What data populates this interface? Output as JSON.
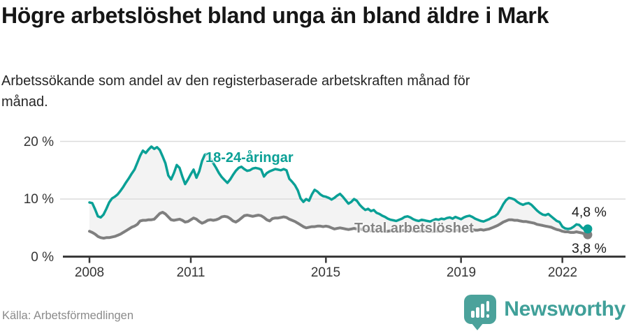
{
  "header": {
    "title": "Högre arbetslöshet bland unga än bland äldre i Mark",
    "subtitle": "Arbetssökande som andel av den registerbaserade arbetskraften månad för månad."
  },
  "footer": {
    "source": "Källa: Arbetsförmedlingen",
    "brand_name": "Newsworthy",
    "brand_logo_icon": "speech-bubble-with-bar-chart"
  },
  "colors": {
    "young_line": "#0aa096",
    "total_line": "#7f7f7f",
    "grid": "#dcdcdc",
    "axis": "#3a3a3a",
    "area_fill": "#f3f3f3",
    "logo_teal": "#4ba29b",
    "title_text": "#161616",
    "source_text": "#8b8b8b"
  },
  "chart_data": {
    "type": "line",
    "title": "Högre arbetslöshet bland unga än bland äldre i Mark",
    "subtitle": "Arbetssökande som andel av den registerbaserade arbetskraften månad för månad.",
    "unit": "%",
    "grid": "horizontal",
    "x_start_year": 2008,
    "points_per_year": 12,
    "x_ticks": [
      2008,
      2011,
      2015,
      2019,
      2022
    ],
    "x_tick_labels": [
      "2008",
      "2011",
      "2015",
      "2019",
      "2022"
    ],
    "y_ticks": [
      0,
      10,
      20
    ],
    "y_tick_labels": [
      "0 %",
      "10 %",
      "20 %"
    ],
    "ylim": [
      0,
      21
    ],
    "area_fill_between_series": true,
    "legend_position": "inline-labels",
    "series": [
      {
        "name": "18-24-åringar",
        "color": "#0aa096",
        "end_label": "4,8 %",
        "end_value": 4.8,
        "values": [
          9.4,
          9.3,
          8.2,
          7.0,
          6.8,
          7.3,
          8.3,
          9.4,
          10.1,
          10.4,
          10.8,
          11.4,
          12.1,
          12.9,
          13.6,
          14.4,
          15.1,
          16.3,
          17.5,
          18.4,
          18.0,
          18.6,
          19.1,
          18.7,
          19.0,
          18.5,
          17.4,
          16.2,
          14.1,
          13.4,
          14.5,
          15.9,
          15.4,
          13.9,
          12.6,
          13.4,
          14.3,
          15.1,
          13.7,
          14.8,
          16.6,
          17.7,
          17.9,
          17.0,
          16.2,
          15.4,
          14.5,
          13.8,
          13.3,
          12.8,
          13.4,
          14.2,
          14.9,
          15.4,
          15.6,
          15.2,
          14.9,
          15.0,
          15.3,
          15.4,
          15.3,
          15.1,
          13.9,
          14.5,
          14.8,
          15.0,
          15.2,
          15.1,
          15.0,
          15.2,
          15.0,
          13.5,
          13.0,
          12.4,
          11.5,
          10.1,
          9.5,
          10.0,
          9.7,
          10.8,
          11.6,
          11.3,
          10.8,
          10.5,
          10.4,
          10.2,
          9.9,
          10.2,
          10.6,
          10.9,
          10.4,
          9.8,
          9.2,
          9.5,
          10.0,
          9.7,
          9.0,
          8.5,
          8.1,
          8.3,
          7.9,
          8.1,
          7.6,
          7.4,
          7.1,
          6.9,
          6.6,
          6.4,
          6.3,
          6.2,
          6.4,
          6.6,
          6.9,
          7.0,
          6.8,
          6.5,
          6.3,
          6.2,
          6.4,
          6.3,
          6.2,
          6.1,
          6.3,
          6.5,
          6.4,
          6.6,
          6.5,
          6.7,
          6.8,
          6.6,
          6.9,
          6.7,
          6.5,
          6.8,
          7.0,
          7.1,
          6.9,
          6.6,
          6.4,
          6.2,
          6.1,
          6.3,
          6.5,
          6.8,
          7.0,
          7.4,
          8.2,
          9.1,
          9.8,
          10.2,
          10.1,
          9.9,
          9.5,
          9.2,
          9.0,
          9.2,
          9.3,
          9.0,
          8.5,
          8.0,
          7.6,
          7.3,
          7.2,
          7.4,
          7.0,
          6.6,
          6.2,
          6.0,
          5.2,
          4.9,
          4.8,
          4.9,
          5.2,
          5.6,
          5.5,
          5.0,
          4.7,
          4.8
        ]
      },
      {
        "name": "Total arbetslöshet",
        "color": "#7f7f7f",
        "end_label": "3,8 %",
        "end_value": 3.8,
        "values": [
          4.4,
          4.2,
          3.9,
          3.5,
          3.3,
          3.2,
          3.3,
          3.3,
          3.4,
          3.5,
          3.7,
          3.9,
          4.2,
          4.5,
          4.8,
          5.1,
          5.3,
          5.6,
          6.2,
          6.3,
          6.3,
          6.4,
          6.4,
          6.5,
          7.0,
          7.5,
          7.7,
          7.4,
          6.9,
          6.4,
          6.3,
          6.4,
          6.5,
          6.3,
          6.0,
          6.1,
          6.4,
          6.7,
          6.5,
          6.1,
          5.8,
          6.0,
          6.3,
          6.4,
          6.3,
          6.4,
          6.6,
          6.9,
          7.0,
          6.9,
          6.6,
          6.2,
          6.0,
          6.3,
          6.7,
          7.1,
          7.2,
          7.1,
          7.0,
          7.1,
          7.2,
          7.1,
          6.8,
          6.4,
          6.2,
          6.6,
          6.7,
          6.7,
          6.8,
          6.9,
          6.8,
          6.5,
          6.3,
          6.1,
          5.8,
          5.5,
          5.2,
          5.0,
          5.1,
          5.2,
          5.2,
          5.3,
          5.3,
          5.2,
          5.3,
          5.2,
          5.0,
          4.8,
          4.9,
          5.0,
          4.9,
          4.8,
          4.7,
          4.8,
          4.9,
          4.8,
          4.8,
          4.7,
          4.6,
          4.5,
          4.5,
          4.6,
          4.7,
          4.6,
          4.5,
          4.4,
          4.4,
          4.5,
          4.5,
          4.4,
          4.4,
          4.5,
          4.6,
          4.7,
          4.6,
          4.5,
          4.4,
          4.4,
          4.5,
          4.5,
          4.5,
          4.4,
          4.4,
          4.5,
          4.4,
          4.5,
          4.5,
          4.6,
          4.6,
          4.5,
          4.6,
          4.6,
          4.6,
          4.7,
          4.7,
          4.8,
          4.7,
          4.6,
          4.6,
          4.7,
          4.6,
          4.7,
          4.8,
          5.0,
          5.2,
          5.4,
          5.7,
          6.0,
          6.2,
          6.4,
          6.4,
          6.3,
          6.3,
          6.2,
          6.1,
          6.1,
          6.0,
          5.9,
          5.8,
          5.6,
          5.5,
          5.4,
          5.3,
          5.2,
          5.1,
          4.9,
          4.7,
          4.6,
          4.4,
          4.3,
          4.3,
          4.2,
          4.2,
          4.3,
          4.2,
          4.1,
          3.9,
          3.8
        ]
      }
    ]
  }
}
